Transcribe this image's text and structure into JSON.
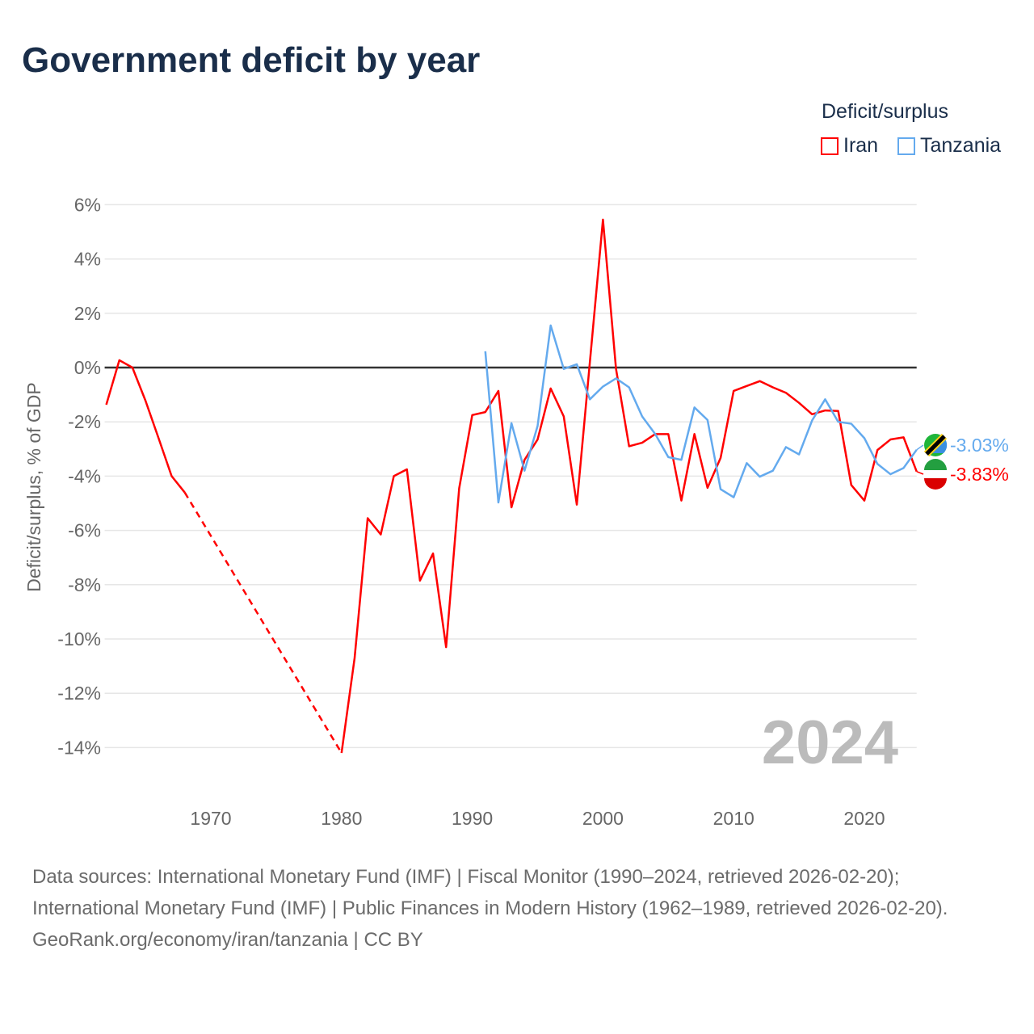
{
  "title": "Government deficit by year",
  "footer": {
    "sources": "Data sources: International Monetary Fund (IMF) | Fiscal Monitor (1990–2024, retrieved 2026-02-20); International Monetary Fund (IMF) | Public Finances in Modern History (1962–1989, retrieved 2026-02-20).",
    "credit": "GeoRank.org/economy/iran/tanzania | CC BY"
  },
  "chart_data": {
    "type": "line",
    "title": "Government deficit by year",
    "xlabel": "",
    "ylabel": "Deficit/surplus, % of GDP",
    "legend_title": "Deficit/surplus",
    "legend_position": "top-right",
    "year_watermark": "2024",
    "xlim": [
      1962,
      2024
    ],
    "ylim": [
      -15,
      6
    ],
    "x_ticks": [
      "1970",
      "1980",
      "1990",
      "2000",
      "2010",
      "2020"
    ],
    "y_ticks": [
      "6%",
      "4%",
      "2%",
      "0%",
      "-2%",
      "-4%",
      "-6%",
      "-8%",
      "-10%",
      "-12%",
      "-14%"
    ],
    "grid": true,
    "series": [
      {
        "name": "Iran",
        "color": "#ff0000",
        "end_label": "-3.83%",
        "points": [
          [
            1962,
            -1.37
          ],
          [
            1963,
            0.27
          ],
          [
            1964,
            0
          ],
          [
            1965,
            -1.22
          ],
          [
            1966,
            -2.6
          ],
          [
            1967,
            -4.0
          ],
          [
            1968,
            -4.6
          ],
          [
            1980,
            -14.2
          ],
          [
            1981,
            -10.7
          ],
          [
            1982,
            -5.55
          ],
          [
            1983,
            -6.15
          ],
          [
            1984,
            -4.0
          ],
          [
            1985,
            -3.75
          ],
          [
            1986,
            -7.85
          ],
          [
            1987,
            -6.85
          ],
          [
            1988,
            -10.3
          ],
          [
            1989,
            -4.45
          ],
          [
            1990,
            -1.75
          ],
          [
            1991,
            -1.64
          ],
          [
            1992,
            -0.86
          ],
          [
            1993,
            -5.15
          ],
          [
            1994,
            -3.4
          ],
          [
            1995,
            -2.65
          ],
          [
            1996,
            -0.77
          ],
          [
            1997,
            -1.8
          ],
          [
            1998,
            -5.05
          ],
          [
            1999,
            0.2
          ],
          [
            2000,
            5.45
          ],
          [
            2001,
            -0.05
          ],
          [
            2002,
            -2.9
          ],
          [
            2003,
            -2.77
          ],
          [
            2004,
            -2.45
          ],
          [
            2005,
            -2.45
          ],
          [
            2006,
            -4.9
          ],
          [
            2007,
            -2.45
          ],
          [
            2008,
            -4.43
          ],
          [
            2009,
            -3.33
          ],
          [
            2010,
            -0.86
          ],
          [
            2011,
            -0.68
          ],
          [
            2012,
            -0.5
          ],
          [
            2013,
            -0.73
          ],
          [
            2014,
            -0.93
          ],
          [
            2015,
            -1.3
          ],
          [
            2016,
            -1.72
          ],
          [
            2017,
            -1.58
          ],
          [
            2018,
            -1.6
          ],
          [
            2019,
            -4.33
          ],
          [
            2020,
            -4.9
          ],
          [
            2021,
            -3.04
          ],
          [
            2022,
            -2.65
          ],
          [
            2023,
            -2.57
          ],
          [
            2024,
            -3.83
          ]
        ],
        "dashed_gap": [
          1968,
          1980
        ]
      },
      {
        "name": "Tanzania",
        "color": "#64aaee",
        "end_label": "-3.03%",
        "points": [
          [
            1991,
            0.6
          ],
          [
            1992,
            -4.97
          ],
          [
            1993,
            -2.05
          ],
          [
            1994,
            -3.8
          ],
          [
            1995,
            -2.15
          ],
          [
            1996,
            1.55
          ],
          [
            1997,
            -0.05
          ],
          [
            1998,
            0.12
          ],
          [
            1999,
            -1.17
          ],
          [
            2000,
            -0.7
          ],
          [
            2001,
            -0.4
          ],
          [
            2002,
            -0.73
          ],
          [
            2003,
            -1.8
          ],
          [
            2004,
            -2.45
          ],
          [
            2005,
            -3.3
          ],
          [
            2006,
            -3.4
          ],
          [
            2007,
            -1.47
          ],
          [
            2008,
            -1.93
          ],
          [
            2009,
            -4.48
          ],
          [
            2010,
            -4.78
          ],
          [
            2011,
            -3.52
          ],
          [
            2012,
            -4.02
          ],
          [
            2013,
            -3.8
          ],
          [
            2014,
            -2.93
          ],
          [
            2015,
            -3.2
          ],
          [
            2016,
            -1.95
          ],
          [
            2017,
            -1.17
          ],
          [
            2018,
            -2.0
          ],
          [
            2019,
            -2.07
          ],
          [
            2020,
            -2.6
          ],
          [
            2021,
            -3.55
          ],
          [
            2022,
            -3.93
          ],
          [
            2023,
            -3.7
          ],
          [
            2024,
            -3.03
          ]
        ]
      }
    ]
  }
}
